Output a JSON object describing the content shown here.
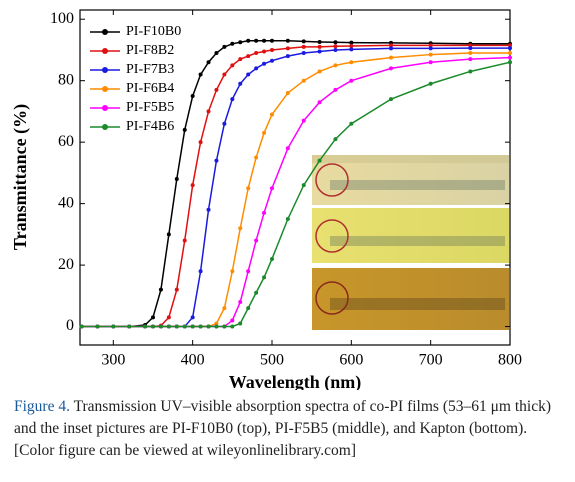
{
  "chart_data": {
    "type": "line",
    "xlabel": "Wavelength (nm)",
    "ylabel": "Transmittance (%)",
    "x": [
      260,
      280,
      300,
      320,
      340,
      350,
      360,
      370,
      380,
      390,
      400,
      410,
      420,
      430,
      440,
      450,
      460,
      470,
      480,
      490,
      500,
      520,
      540,
      560,
      580,
      600,
      650,
      700,
      750,
      800
    ],
    "series": [
      {
        "name": "PI-F10B0",
        "color": "#000000",
        "values": [
          0,
          0,
          0,
          0,
          0.5,
          3,
          12,
          30,
          48,
          64,
          75,
          82,
          86,
          89,
          91,
          92,
          92.5,
          93,
          93,
          93,
          93,
          93,
          92.8,
          92.6,
          92.5,
          92.4,
          92.3,
          92.2,
          92,
          92
        ]
      },
      {
        "name": "PI-F8B2",
        "color": "#e01010",
        "values": [
          0,
          0,
          0,
          0,
          0,
          0,
          0.3,
          3,
          12,
          28,
          46,
          60,
          70,
          77,
          82,
          85,
          87,
          88,
          89,
          89.5,
          90,
          90.5,
          91,
          91,
          91.2,
          91.3,
          91.5,
          91.5,
          91.5,
          91.5
        ]
      },
      {
        "name": "PI-F7B3",
        "color": "#1a1ae0",
        "values": [
          0,
          0,
          0,
          0,
          0,
          0,
          0,
          0,
          0,
          0,
          3,
          18,
          38,
          54,
          66,
          74,
          79,
          82,
          84,
          85.5,
          86.5,
          88,
          89,
          89.5,
          90,
          90.2,
          90.5,
          90.5,
          90.6,
          90.6
        ]
      },
      {
        "name": "PI-F6B4",
        "color": "#ff8c00",
        "values": [
          0,
          0,
          0,
          0,
          0,
          0,
          0,
          0,
          0,
          0,
          0,
          0,
          0,
          1,
          6,
          18,
          32,
          45,
          55,
          63,
          69,
          76,
          80,
          83,
          85,
          86,
          87.5,
          88.5,
          89,
          89
        ]
      },
      {
        "name": "PI-F5B5",
        "color": "#ff00ff",
        "values": [
          0,
          0,
          0,
          0,
          0,
          0,
          0,
          0,
          0,
          0,
          0,
          0,
          0,
          0,
          0,
          2,
          8,
          18,
          28,
          37,
          45,
          58,
          67,
          73,
          77,
          80,
          84,
          86,
          87,
          87.5
        ]
      },
      {
        "name": "PI-F4B6",
        "color": "#1a8a2a",
        "values": [
          0,
          0,
          0,
          0,
          0,
          0,
          0,
          0,
          0,
          0,
          0,
          0,
          0,
          0,
          0,
          0,
          1,
          6,
          11,
          16,
          22,
          35,
          46,
          54,
          61,
          66,
          74,
          79,
          83,
          86
        ]
      }
    ],
    "xlim": [
      258,
      800
    ],
    "ylim": [
      -6,
      103
    ],
    "xticks": [
      300,
      400,
      500,
      600,
      700,
      800
    ],
    "yticks": [
      0,
      20,
      40,
      60,
      80,
      100
    ],
    "legend": "upper left"
  },
  "caption": {
    "label": "Figure 4.",
    "text": "Transmission UV–visible absorption spectra of co-PI films (53–61 μm thick) and the inset pictures are PI-F10B0 (top), PI-F5B5 (middle), and Kapton (bottom). [Color figure can be viewed at wileyonlinelibrary.com]"
  }
}
